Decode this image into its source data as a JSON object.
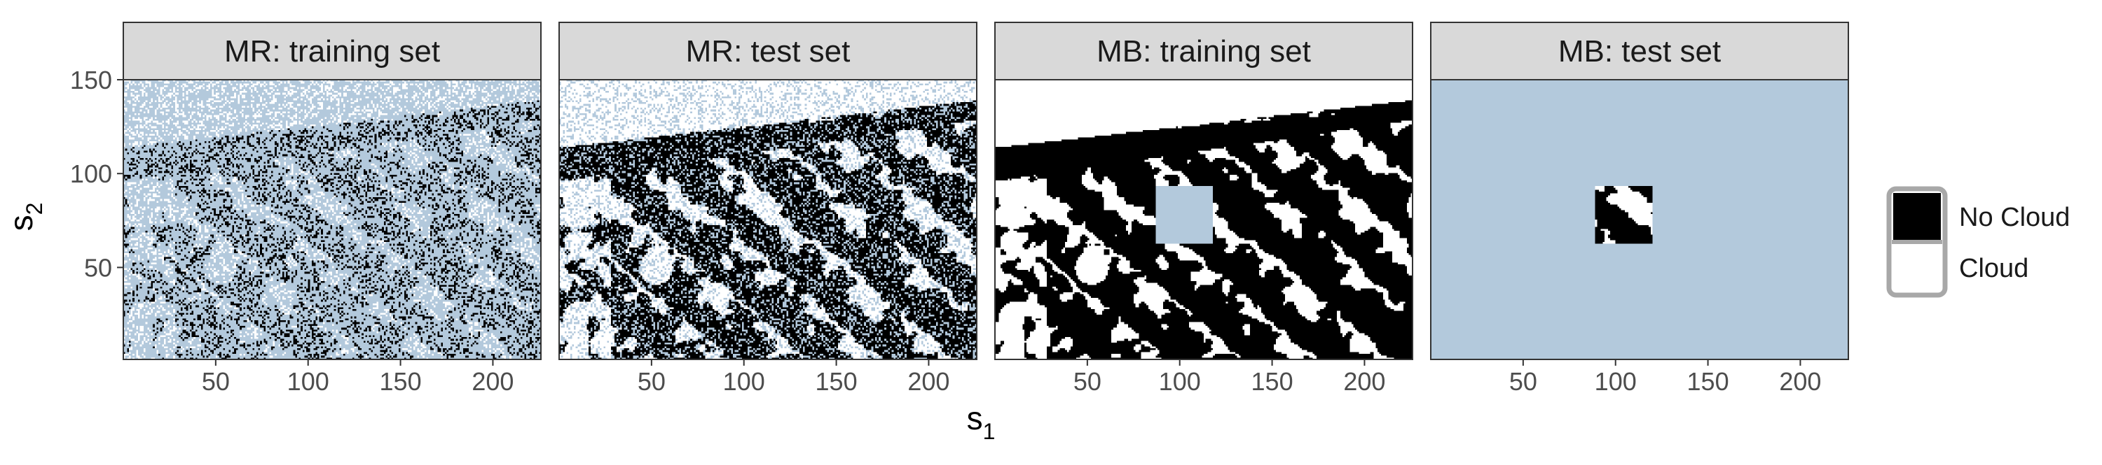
{
  "chart_data": {
    "type": "heatmap",
    "xlabel": "s",
    "xlabel_sub": "1",
    "ylabel": "s",
    "ylabel_sub": "2",
    "xlim": [
      0,
      226
    ],
    "ylim": [
      1,
      150
    ],
    "x_ticks": [
      50,
      100,
      150,
      200
    ],
    "y_ticks": [
      50,
      100,
      150
    ],
    "grid": false,
    "legend_position": "right",
    "colors": {
      "no_cloud": "#000000",
      "cloud": "#ffffff",
      "missing": "#b3c9dc",
      "strip": "#d9d9d9",
      "border": "#333333"
    },
    "legend": [
      {
        "label": "No Cloud",
        "color": "#000000"
      },
      {
        "label": "Cloud",
        "color": "#ffffff"
      }
    ],
    "panels": [
      {
        "title": "MR: training set",
        "pattern": "mr-train"
      },
      {
        "title": "MR: test set",
        "pattern": "mr-test"
      },
      {
        "title": "MB: training set",
        "pattern": "mb-train",
        "held_out_box": {
          "x": [
            88,
            118
          ],
          "y": [
            63,
            93
          ]
        }
      },
      {
        "title": "MB: test set",
        "pattern": "mb-test",
        "observed_box": {
          "x": [
            90,
            120
          ],
          "y": [
            63,
            93
          ]
        }
      }
    ]
  }
}
